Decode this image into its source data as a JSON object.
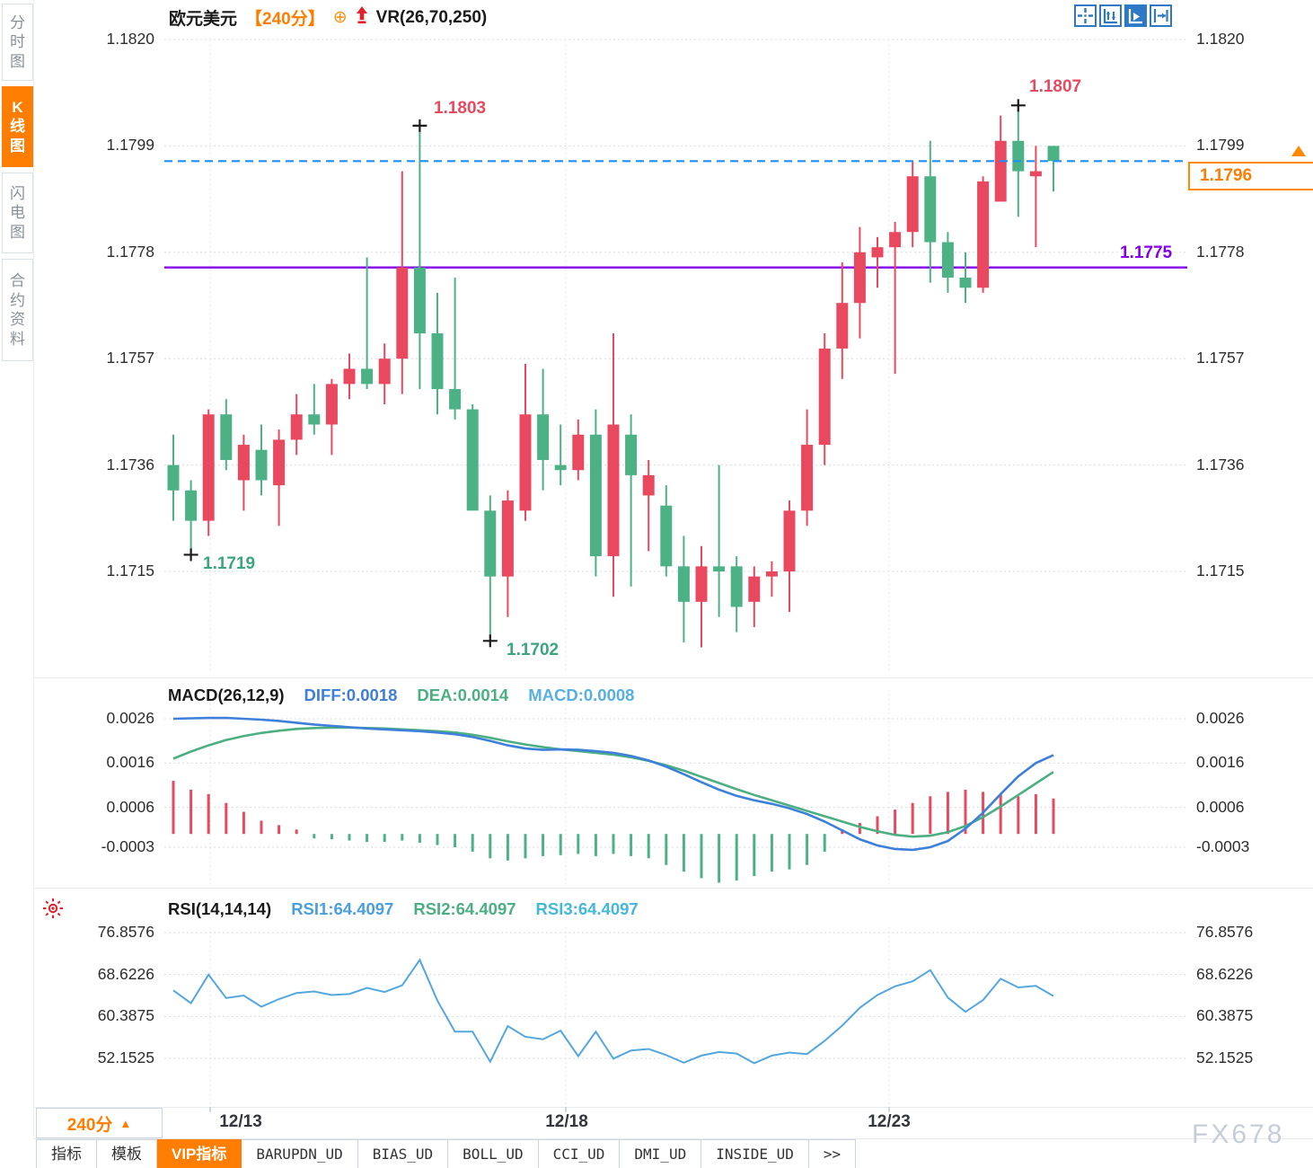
{
  "window": {
    "watermark": "FX678"
  },
  "colors": {
    "up": "#e8495f",
    "down": "#4db186",
    "diff_line": "#3d7fd9",
    "dea_line": "#4caf82",
    "macd_value": "#58b0e2",
    "rsi1": "#4a9fdd",
    "rsi2": "#4caf82",
    "rsi3": "#45b8d8",
    "rsi_line": "#54a7dd",
    "accent_orange": "#ff7d00",
    "purple_line": "#8300e9",
    "dashed_blue": "#1f8fff",
    "annotation_red": "#e8495f",
    "annotation_green": "#3aa57f",
    "icon_blue": "#2e79c6",
    "red_icon": "#e1202a",
    "grid": "#d8dbe0"
  },
  "sidebar": {
    "tabs": [
      {
        "label": "分时图",
        "active": false
      },
      {
        "label": "K线图",
        "active": true
      },
      {
        "label": "闪电图",
        "active": false
      },
      {
        "label": "合约资料",
        "active": false
      }
    ]
  },
  "header": {
    "symbol": "欧元美元",
    "timeframe": "【240分】",
    "plus_icon": "⊕",
    "indicator": "VR(26,70,250)",
    "toolbar_icons": [
      "crosshair-icon",
      "axis-fit-icon",
      "axis-play-icon",
      "pan-right-icon"
    ]
  },
  "price_panel": {
    "axis": [
      "1.1820",
      "1.1799",
      "1.1778",
      "1.1757",
      "1.1736",
      "1.1715"
    ],
    "labels": {
      "spike_high": "1.1803",
      "high": "1.1807",
      "low1": "1.1719",
      "low2": "1.1702",
      "support": "1.1775",
      "current": "1.1796"
    }
  },
  "macd_panel": {
    "title": "MACD(26,12,9)",
    "diff_label": "DIFF:0.0018",
    "dea_label": "DEA:0.0014",
    "macd_label": "MACD:0.0008",
    "axis": [
      "0.0026",
      "0.0016",
      "0.0006",
      "-0.0003"
    ]
  },
  "rsi_panel": {
    "title": "RSI(14,14,14)",
    "rsi1_label": "RSI1:64.4097",
    "rsi2_label": "RSI2:64.4097",
    "rsi3_label": "RSI3:64.4097",
    "axis": [
      "76.8576",
      "68.6226",
      "60.3875",
      "52.1525"
    ]
  },
  "bottom_axis": {
    "timeframe": "240分",
    "dropdown_arrow": "▲",
    "dates": [
      "12/13",
      "12/18",
      "12/23"
    ]
  },
  "bottom_tabs": [
    {
      "label": "指标",
      "active": false
    },
    {
      "label": "模板",
      "active": false
    },
    {
      "label": "VIP指标",
      "active": true
    },
    {
      "label": "BARUPDN_UD",
      "active": false
    },
    {
      "label": "BIAS_UD",
      "active": false
    },
    {
      "label": "BOLL_UD",
      "active": false
    },
    {
      "label": "CCI_UD",
      "active": false
    },
    {
      "label": "DMI_UD",
      "active": false
    },
    {
      "label": "INSIDE_UD",
      "active": false
    },
    {
      "label": ">>",
      "active": false
    }
  ],
  "chart_data": [
    {
      "type": "candlestick",
      "title": "欧元美元 240分 VR(26,70,250)",
      "convention": "red=up green=down",
      "y_axis": [
        1.182,
        1.1799,
        1.1778,
        1.1757,
        1.1736,
        1.1715
      ],
      "ylim": [
        1.1695,
        1.1825
      ],
      "date_ticks": [
        "12/13",
        "12/18",
        "12/23"
      ],
      "support_line": 1.1775,
      "last_price": 1.1796,
      "spike_marker": {
        "index": 14,
        "price": 1.1803
      },
      "high_marker": {
        "index": 48,
        "price": 1.1807
      },
      "low_markers": [
        {
          "index": 1,
          "price": 1.1719
        },
        {
          "index": 18,
          "price": 1.1702
        }
      ],
      "candles_ohlc": [
        [
          1.1736,
          1.1742,
          1.1725,
          1.1731
        ],
        [
          1.1731,
          1.1733,
          1.1719,
          1.1725
        ],
        [
          1.1725,
          1.1747,
          1.1722,
          1.1746
        ],
        [
          1.1746,
          1.1749,
          1.1735,
          1.1737
        ],
        [
          1.1733,
          1.1742,
          1.1727,
          1.174
        ],
        [
          1.1739,
          1.1744,
          1.173,
          1.1733
        ],
        [
          1.1732,
          1.1743,
          1.1724,
          1.1741
        ],
        [
          1.1741,
          1.175,
          1.1738,
          1.1746
        ],
        [
          1.1746,
          1.1752,
          1.1742,
          1.1744
        ],
        [
          1.1744,
          1.1753,
          1.1738,
          1.1752
        ],
        [
          1.1752,
          1.1758,
          1.1749,
          1.1755
        ],
        [
          1.1755,
          1.1777,
          1.1751,
          1.1752
        ],
        [
          1.1752,
          1.176,
          1.1748,
          1.1757
        ],
        [
          1.1757,
          1.1794,
          1.175,
          1.1775
        ],
        [
          1.1775,
          1.1803,
          1.1751,
          1.1762
        ],
        [
          1.1762,
          1.177,
          1.1746,
          1.1751
        ],
        [
          1.1751,
          1.1773,
          1.1745,
          1.1747
        ],
        [
          1.1747,
          1.1748,
          1.1728,
          1.1727
        ],
        [
          1.1727,
          1.173,
          1.1702,
          1.1714
        ],
        [
          1.1714,
          1.1731,
          1.1706,
          1.1729
        ],
        [
          1.1727,
          1.1756,
          1.1725,
          1.1746
        ],
        [
          1.1746,
          1.1755,
          1.1731,
          1.1737
        ],
        [
          1.1736,
          1.1744,
          1.1732,
          1.1735
        ],
        [
          1.1735,
          1.1745,
          1.1733,
          1.1742
        ],
        [
          1.1742,
          1.1747,
          1.1714,
          1.1718
        ],
        [
          1.1718,
          1.1762,
          1.171,
          1.1744
        ],
        [
          1.1742,
          1.1746,
          1.1712,
          1.1734
        ],
        [
          1.173,
          1.1737,
          1.1719,
          1.1734
        ],
        [
          1.1728,
          1.1732,
          1.1714,
          1.1716
        ],
        [
          1.1716,
          1.1722,
          1.1701,
          1.1709
        ],
        [
          1.1709,
          1.172,
          1.17,
          1.1716
        ],
        [
          1.1716,
          1.1736,
          1.1706,
          1.1715
        ],
        [
          1.1716,
          1.1718,
          1.1703,
          1.1708
        ],
        [
          1.1709,
          1.1716,
          1.1704,
          1.1714
        ],
        [
          1.1714,
          1.1717,
          1.171,
          1.1715
        ],
        [
          1.1715,
          1.1729,
          1.1707,
          1.1727
        ],
        [
          1.1727,
          1.1747,
          1.1724,
          1.174
        ],
        [
          1.174,
          1.1762,
          1.1736,
          1.1759
        ],
        [
          1.1759,
          1.1776,
          1.1753,
          1.1768
        ],
        [
          1.1768,
          1.1783,
          1.1761,
          1.1778
        ],
        [
          1.1777,
          1.1781,
          1.1771,
          1.1779
        ],
        [
          1.1779,
          1.1784,
          1.1754,
          1.1782
        ],
        [
          1.1782,
          1.1796,
          1.1779,
          1.1793
        ],
        [
          1.1793,
          1.18,
          1.1772,
          1.178
        ],
        [
          1.178,
          1.1782,
          1.177,
          1.1773
        ],
        [
          1.1773,
          1.1778,
          1.1768,
          1.1771
        ],
        [
          1.1771,
          1.1793,
          1.177,
          1.1792
        ],
        [
          1.1788,
          1.1805,
          1.1788,
          1.18
        ],
        [
          1.18,
          1.1807,
          1.1785,
          1.1794
        ],
        [
          1.1793,
          1.1799,
          1.1779,
          1.1794
        ],
        [
          1.1799,
          1.1799,
          1.179,
          1.1796
        ]
      ]
    },
    {
      "type": "bar",
      "title": "MACD(26,12,9)",
      "legend": [
        "DIFF",
        "DEA",
        "MACD"
      ],
      "last_values": {
        "DIFF": 0.0018,
        "DEA": 0.0014,
        "MACD": 0.0008
      },
      "y_axis": [
        0.0026,
        0.0016,
        0.0006,
        -0.0003
      ],
      "series": [
        {
          "name": "DIFF",
          "values": [
            0.0026,
            0.00261,
            0.00262,
            0.00262,
            0.0026,
            0.00258,
            0.00255,
            0.00251,
            0.00247,
            0.00244,
            0.00241,
            0.00238,
            0.00236,
            0.00234,
            0.00232,
            0.00229,
            0.00225,
            0.00219,
            0.0021,
            0.002,
            0.00193,
            0.0019,
            0.00191,
            0.0019,
            0.00187,
            0.00183,
            0.00176,
            0.00166,
            0.00152,
            0.00135,
            0.00117,
            0.001,
            0.00086,
            0.00076,
            0.00068,
            0.00058,
            0.00045,
            0.00028,
            8e-05,
            -0.00012,
            -0.00026,
            -0.00034,
            -0.00036,
            -0.0003,
            -0.00016,
            0.00012,
            0.00048,
            0.0009,
            0.0013,
            0.0016,
            0.00178
          ]
        },
        {
          "name": "DEA",
          "values": [
            0.0017,
            0.00186,
            0.002,
            0.00212,
            0.00221,
            0.00228,
            0.00233,
            0.00237,
            0.00239,
            0.0024,
            0.0024,
            0.00239,
            0.00238,
            0.00236,
            0.00234,
            0.00232,
            0.00229,
            0.00224,
            0.00217,
            0.00209,
            0.00202,
            0.00196,
            0.00191,
            0.00187,
            0.00183,
            0.00179,
            0.00173,
            0.00165,
            0.00155,
            0.00143,
            0.00129,
            0.00115,
            0.00101,
            0.00088,
            0.00076,
            0.00064,
            0.00052,
            0.0004,
            0.00028,
            0.00016,
            6e-05,
            -2e-05,
            -6e-05,
            -4e-05,
            4e-05,
            0.00018,
            0.00038,
            0.00062,
            0.00088,
            0.00114,
            0.0014
          ]
        },
        {
          "name": "MACD_hist",
          "values": [
            0.0012,
            0.001,
            0.0009,
            0.0007,
            0.0005,
            0.0003,
            0.0002,
            0.0001,
            -0.0001,
            -0.00012,
            -0.00015,
            -0.00018,
            -0.00018,
            -0.00015,
            -0.0002,
            -0.00025,
            -0.0003,
            -0.0004,
            -0.00055,
            -0.0006,
            -0.00055,
            -0.0005,
            -0.00048,
            -0.00045,
            -0.0005,
            -0.00045,
            -0.0005,
            -0.00055,
            -0.0007,
            -0.00085,
            -0.001,
            -0.0011,
            -0.00105,
            -0.00095,
            -0.00085,
            -0.0008,
            -0.0007,
            -0.0004,
            0.0001,
            0.00025,
            0.0004,
            0.00055,
            0.0007,
            0.00085,
            0.00095,
            0.001,
            0.00095,
            0.0009,
            0.00085,
            0.0009,
            0.0008
          ]
        }
      ]
    },
    {
      "type": "line",
      "title": "RSI(14,14,14)",
      "legend": [
        "RSI1",
        "RSI2",
        "RSI3"
      ],
      "last_values": {
        "RSI1": 64.4097,
        "RSI2": 64.4097,
        "RSI3": 64.4097
      },
      "y_axis": [
        76.8576,
        68.6226,
        60.3875,
        52.1525
      ],
      "values": [
        65.5,
        63.0,
        68.6,
        64.0,
        64.5,
        62.3,
        63.8,
        65.0,
        65.3,
        64.6,
        64.8,
        66.0,
        65.2,
        66.5,
        71.5,
        63.5,
        57.4,
        57.4,
        51.5,
        58.5,
        56.4,
        55.9,
        57.6,
        52.6,
        57.4,
        52.1,
        53.7,
        54.0,
        52.8,
        51.3,
        52.7,
        53.4,
        53.1,
        51.2,
        52.7,
        53.3,
        53.0,
        55.6,
        58.6,
        62.1,
        64.6,
        66.3,
        67.3,
        69.5,
        64.1,
        61.3,
        63.6,
        67.8,
        66.1,
        66.4,
        64.4
      ]
    }
  ]
}
